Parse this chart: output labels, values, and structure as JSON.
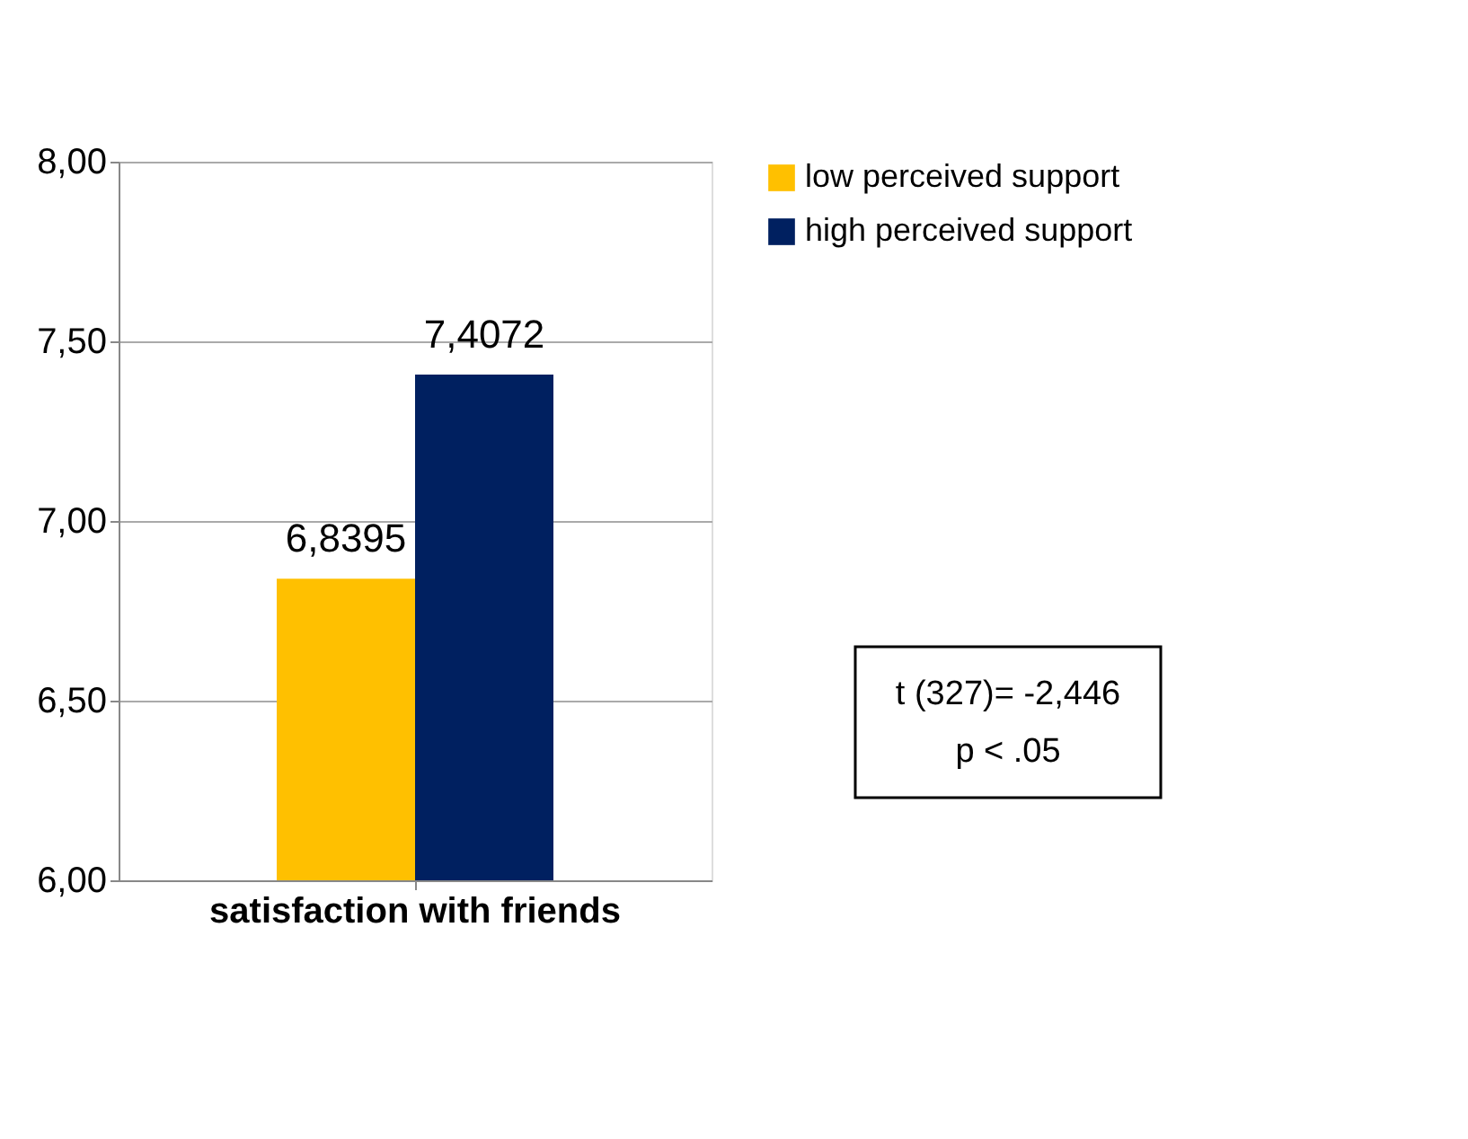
{
  "chart_data": {
    "type": "bar",
    "categories": [
      "satisfaction with friends"
    ],
    "series": [
      {
        "name": "low perceived support",
        "color": "#ffc000",
        "values": [
          6.8395
        ],
        "value_labels": [
          "6,8395"
        ]
      },
      {
        "name": "high perceived support",
        "color": "#002060",
        "values": [
          7.4072
        ],
        "value_labels": [
          "7,4072"
        ]
      }
    ],
    "ylim": [
      6,
      8
    ],
    "yticks": [
      {
        "value": 6,
        "label": "6,00"
      },
      {
        "value": 6.5,
        "label": "6,50"
      },
      {
        "value": 7,
        "label": "7,00"
      },
      {
        "value": 7.5,
        "label": "7,50"
      },
      {
        "value": 8,
        "label": "8,00"
      }
    ],
    "grid": "y",
    "legend": "right",
    "annotations": [
      "t (327)= -2,446",
      "p < .05"
    ]
  }
}
